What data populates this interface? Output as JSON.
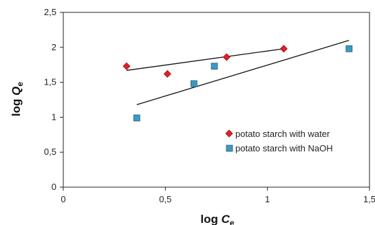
{
  "chart_data": {
    "type": "scatter",
    "xlabel": {
      "main": "log ",
      "var": "C",
      "sub": "e"
    },
    "ylabel": {
      "main": "log ",
      "var": "Q",
      "sub": "e"
    },
    "xlim": [
      0,
      1.5
    ],
    "ylim": [
      0,
      2.5
    ],
    "x_ticks": [
      0,
      0.5,
      1,
      1.5
    ],
    "x_tick_labels": [
      "0",
      "0,5",
      "1",
      "1,5"
    ],
    "y_ticks": [
      0,
      0.5,
      1,
      1.5,
      2,
      2.5
    ],
    "y_tick_labels": [
      "0",
      "0,5",
      "1",
      "1,5",
      "2",
      "2,5"
    ],
    "grid": false,
    "legend_position": "lower-right inside",
    "series": [
      {
        "name": "potato starch with water",
        "marker": "diamond",
        "color": "#e0202a",
        "points": [
          [
            0.31,
            1.73
          ],
          [
            0.51,
            1.62
          ],
          [
            0.8,
            1.86
          ],
          [
            1.08,
            1.98
          ]
        ],
        "trendline": [
          [
            0.31,
            1.67
          ],
          [
            1.08,
            1.98
          ]
        ]
      },
      {
        "name": "potato starch with NaOH",
        "marker": "square",
        "color": "#3a9bc1",
        "points": [
          [
            0.36,
            0.99
          ],
          [
            0.64,
            1.48
          ],
          [
            0.74,
            1.73
          ],
          [
            1.4,
            1.98
          ]
        ],
        "trendline": [
          [
            0.36,
            1.18
          ],
          [
            1.4,
            2.1
          ]
        ]
      }
    ]
  }
}
